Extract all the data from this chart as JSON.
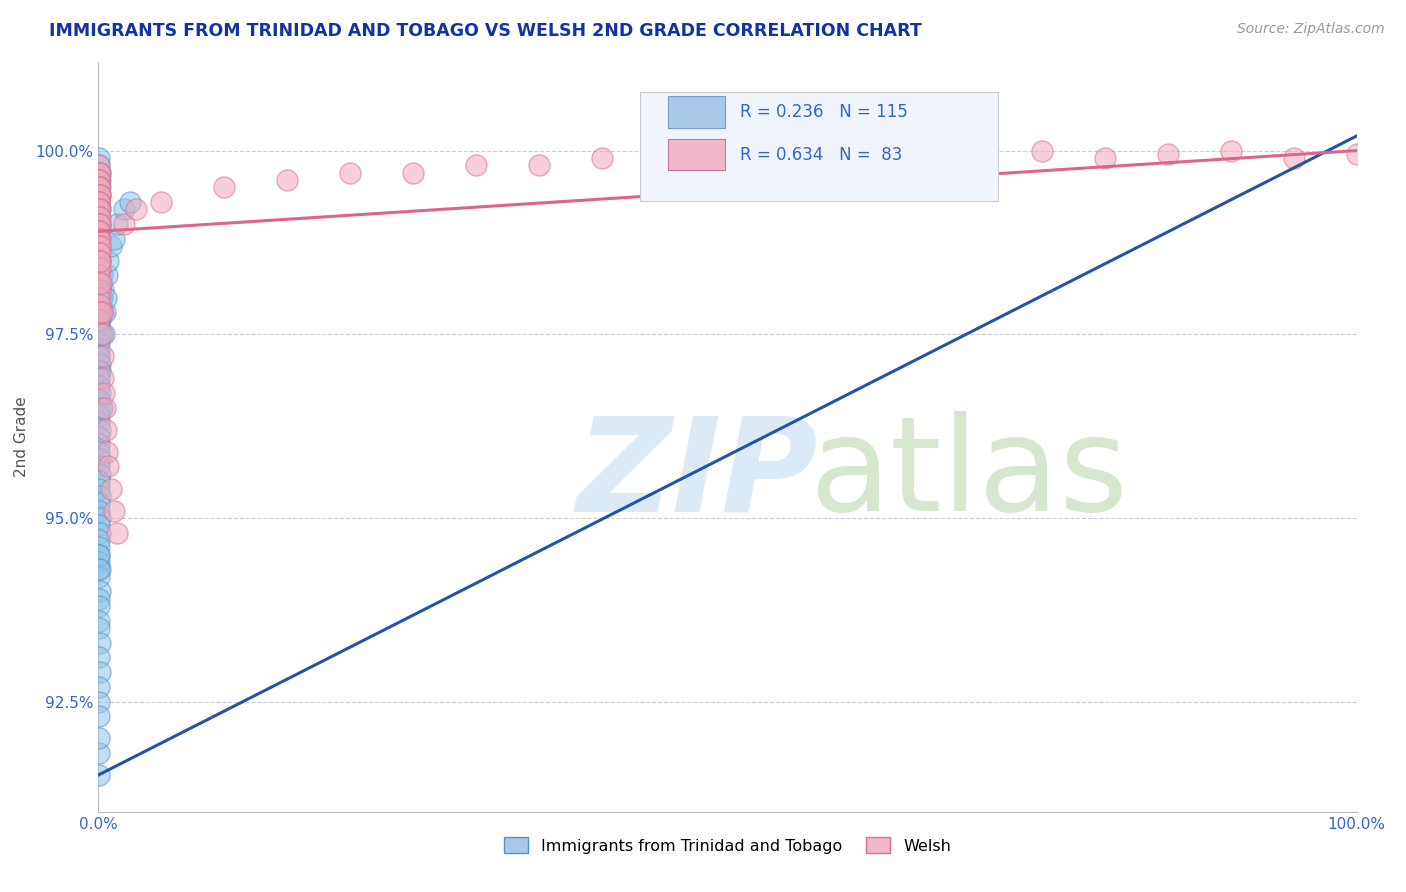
{
  "title": "IMMIGRANTS FROM TRINIDAD AND TOBAGO VS WELSH 2ND GRADE CORRELATION CHART",
  "source_text": "Source: ZipAtlas.com",
  "ylabel": "2nd Grade",
  "legend_label1": "Immigrants from Trinidad and Tobago",
  "legend_label2": "Welsh",
  "R1": 0.236,
  "N1": 115,
  "R2": 0.634,
  "N2": 83,
  "color_blue_fill": "#90c4e8",
  "color_blue_edge": "#5590c8",
  "color_pink_fill": "#f0a8bc",
  "color_pink_edge": "#d87090",
  "color_blue_line": "#2255aa",
  "color_pink_line": "#dd6688",
  "color_legend_box_blue": "#a8c8e8",
  "color_legend_box_pink": "#f0b8c8",
  "color_text_blue": "#3366cc",
  "color_axis_label": "#555555",
  "color_grid": "#ccccdd",
  "color_title": "#1133aa",
  "xlim": [
    0.0,
    100.0
  ],
  "ylim": [
    91.0,
    101.2
  ],
  "yticks": [
    92.5,
    95.0,
    97.5,
    100.0
  ],
  "xtick_vals": [
    0.0,
    100.0
  ],
  "xtick_labels": [
    "0.0%",
    "100.0%"
  ],
  "blue_line": {
    "x0": 0,
    "y0": 91.5,
    "x1": 100,
    "y1": 100.2
  },
  "pink_line": {
    "x0": 0,
    "y0": 98.9,
    "x1": 100,
    "y1": 100.0
  },
  "blue_points": [
    [
      0.05,
      99.9
    ],
    [
      0.06,
      99.8
    ],
    [
      0.08,
      99.7
    ],
    [
      0.1,
      99.7
    ],
    [
      0.12,
      99.6
    ],
    [
      0.05,
      99.5
    ],
    [
      0.07,
      99.5
    ],
    [
      0.09,
      99.4
    ],
    [
      0.06,
      99.3
    ],
    [
      0.08,
      99.3
    ],
    [
      0.1,
      99.2
    ],
    [
      0.04,
      99.1
    ],
    [
      0.07,
      99.1
    ],
    [
      0.09,
      99.0
    ],
    [
      0.11,
      99.0
    ],
    [
      0.05,
      98.9
    ],
    [
      0.06,
      98.8
    ],
    [
      0.08,
      98.8
    ],
    [
      0.1,
      98.7
    ],
    [
      0.12,
      98.7
    ],
    [
      0.04,
      98.6
    ],
    [
      0.07,
      98.5
    ],
    [
      0.09,
      98.5
    ],
    [
      0.05,
      98.4
    ],
    [
      0.08,
      98.3
    ],
    [
      0.1,
      98.3
    ],
    [
      0.06,
      98.2
    ],
    [
      0.09,
      98.1
    ],
    [
      0.11,
      98.0
    ],
    [
      0.07,
      98.0
    ],
    [
      0.04,
      97.9
    ],
    [
      0.06,
      97.8
    ],
    [
      0.08,
      97.8
    ],
    [
      0.1,
      97.7
    ],
    [
      0.05,
      97.7
    ],
    [
      0.07,
      97.6
    ],
    [
      0.09,
      97.5
    ],
    [
      0.12,
      97.5
    ],
    [
      0.06,
      97.4
    ],
    [
      0.08,
      97.3
    ],
    [
      0.04,
      97.2
    ],
    [
      0.07,
      97.2
    ],
    [
      0.1,
      97.1
    ],
    [
      0.05,
      97.0
    ],
    [
      0.09,
      97.0
    ],
    [
      0.06,
      96.9
    ],
    [
      0.08,
      96.8
    ],
    [
      0.11,
      96.7
    ],
    [
      0.07,
      96.6
    ],
    [
      0.1,
      96.5
    ],
    [
      0.04,
      96.4
    ],
    [
      0.06,
      96.3
    ],
    [
      0.09,
      96.2
    ],
    [
      0.05,
      96.1
    ],
    [
      0.08,
      96.0
    ],
    [
      0.07,
      95.9
    ],
    [
      0.1,
      95.8
    ],
    [
      0.06,
      95.7
    ],
    [
      0.09,
      95.6
    ],
    [
      0.04,
      95.5
    ],
    [
      0.08,
      95.4
    ],
    [
      0.11,
      95.3
    ],
    [
      0.05,
      95.2
    ],
    [
      0.07,
      95.1
    ],
    [
      0.1,
      95.0
    ],
    [
      0.06,
      94.9
    ],
    [
      0.09,
      94.8
    ],
    [
      0.04,
      94.7
    ],
    [
      0.08,
      94.6
    ],
    [
      0.07,
      94.5
    ],
    [
      0.05,
      94.4
    ],
    [
      0.1,
      94.3
    ],
    [
      0.06,
      94.2
    ],
    [
      0.09,
      94.0
    ],
    [
      0.04,
      93.9
    ],
    [
      0.07,
      93.8
    ],
    [
      0.08,
      93.6
    ],
    [
      0.05,
      93.5
    ],
    [
      0.1,
      93.3
    ],
    [
      0.06,
      93.1
    ],
    [
      0.09,
      92.9
    ],
    [
      0.04,
      92.7
    ],
    [
      0.07,
      92.5
    ],
    [
      0.05,
      94.5
    ],
    [
      0.06,
      94.3
    ],
    [
      0.15,
      98.5
    ],
    [
      0.2,
      98.2
    ],
    [
      0.25,
      98.3
    ],
    [
      0.3,
      98.0
    ],
    [
      0.35,
      97.8
    ],
    [
      0.4,
      98.1
    ],
    [
      0.45,
      97.5
    ],
    [
      0.5,
      97.8
    ],
    [
      0.6,
      98.0
    ],
    [
      0.7,
      98.3
    ],
    [
      0.8,
      98.5
    ],
    [
      1.0,
      98.7
    ],
    [
      1.2,
      98.8
    ],
    [
      1.5,
      99.0
    ],
    [
      2.0,
      99.2
    ],
    [
      2.5,
      99.3
    ],
    [
      0.05,
      91.8
    ],
    [
      0.06,
      91.5
    ],
    [
      0.04,
      92.0
    ],
    [
      0.07,
      92.3
    ],
    [
      0.3,
      96.5
    ]
  ],
  "pink_points": [
    [
      0.05,
      99.8
    ],
    [
      0.07,
      99.7
    ],
    [
      0.1,
      99.7
    ],
    [
      0.04,
      99.6
    ],
    [
      0.08,
      99.6
    ],
    [
      0.12,
      99.5
    ],
    [
      0.06,
      99.5
    ],
    [
      0.09,
      99.4
    ],
    [
      0.11,
      99.4
    ],
    [
      0.05,
      99.3
    ],
    [
      0.07,
      99.3
    ],
    [
      0.1,
      99.2
    ],
    [
      0.04,
      99.2
    ],
    [
      0.08,
      99.1
    ],
    [
      0.12,
      99.1
    ],
    [
      0.06,
      99.0
    ],
    [
      0.09,
      99.0
    ],
    [
      0.05,
      98.9
    ],
    [
      0.07,
      98.9
    ],
    [
      0.1,
      98.8
    ],
    [
      0.04,
      98.8
    ],
    [
      0.08,
      98.7
    ],
    [
      0.11,
      98.7
    ],
    [
      0.06,
      98.6
    ],
    [
      0.09,
      98.6
    ],
    [
      0.05,
      98.5
    ],
    [
      0.07,
      98.4
    ],
    [
      0.1,
      98.4
    ],
    [
      0.04,
      98.3
    ],
    [
      0.08,
      98.2
    ],
    [
      0.12,
      98.1
    ],
    [
      0.06,
      98.0
    ],
    [
      0.09,
      97.9
    ],
    [
      0.11,
      97.8
    ],
    [
      0.05,
      97.7
    ],
    [
      0.15,
      98.5
    ],
    [
      0.2,
      98.2
    ],
    [
      0.25,
      97.8
    ],
    [
      0.3,
      97.5
    ],
    [
      0.35,
      97.2
    ],
    [
      0.4,
      96.9
    ],
    [
      0.45,
      96.7
    ],
    [
      0.5,
      96.5
    ],
    [
      0.6,
      96.2
    ],
    [
      0.7,
      95.9
    ],
    [
      0.8,
      95.7
    ],
    [
      1.0,
      95.4
    ],
    [
      1.2,
      95.1
    ],
    [
      1.5,
      94.8
    ],
    [
      50.0,
      99.9
    ],
    [
      55.0,
      99.95
    ],
    [
      60.0,
      100.0
    ],
    [
      65.0,
      99.9
    ],
    [
      70.0,
      99.95
    ],
    [
      75.0,
      100.0
    ],
    [
      80.0,
      99.9
    ],
    [
      85.0,
      99.95
    ],
    [
      90.0,
      100.0
    ],
    [
      95.0,
      99.9
    ],
    [
      100.0,
      99.95
    ],
    [
      10.0,
      99.5
    ],
    [
      15.0,
      99.6
    ],
    [
      20.0,
      99.7
    ],
    [
      25.0,
      99.7
    ],
    [
      30.0,
      99.8
    ],
    [
      35.0,
      99.8
    ],
    [
      40.0,
      99.9
    ],
    [
      2.0,
      99.0
    ],
    [
      3.0,
      99.2
    ],
    [
      5.0,
      99.3
    ]
  ]
}
